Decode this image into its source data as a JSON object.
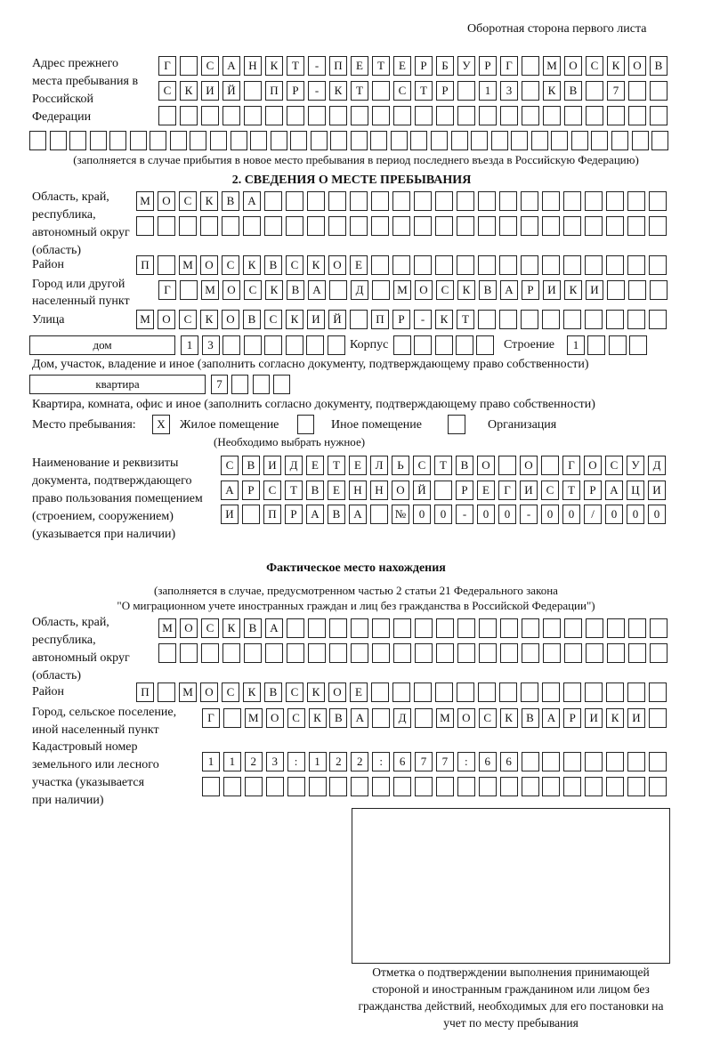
{
  "header": {
    "page_side": "Оборотная сторона первого листа"
  },
  "previous_address": {
    "label": "Адрес прежнего места пребывания в Российской Федерации",
    "rows": [
      [
        "Г",
        "",
        "С",
        "А",
        "Н",
        "К",
        "Т",
        "-",
        "П",
        "Е",
        "Т",
        "Е",
        "Р",
        "Б",
        "У",
        "Р",
        "Г",
        "",
        "М",
        "О",
        "С",
        "К",
        "О",
        "В"
      ],
      [
        "С",
        "К",
        "И",
        "Й",
        "",
        "П",
        "Р",
        "-",
        "К",
        "Т",
        "",
        "С",
        "Т",
        "Р",
        "",
        "1",
        "3",
        "",
        "К",
        "В",
        "",
        "7",
        "",
        ""
      ],
      [
        "",
        "",
        "",
        "",
        "",
        "",
        "",
        "",
        "",
        "",
        "",
        "",
        "",
        "",
        "",
        "",
        "",
        "",
        "",
        "",
        "",
        "",
        "",
        ""
      ],
      [
        "",
        "",
        "",
        "",
        "",
        "",
        "",
        "",
        "",
        "",
        "",
        "",
        "",
        "",
        "",
        "",
        "",
        "",
        "",
        "",
        "",
        "",
        "",
        "",
        "",
        "",
        "",
        "",
        "",
        "",
        "",
        ""
      ]
    ],
    "note": "(заполняется в случае прибытия в новое место пребывания в период последнего въезда в Российскую Федерацию)"
  },
  "section2": {
    "title": "2. СВЕДЕНИЯ О МЕСТЕ ПРЕБЫВАНИЯ",
    "region_label": "Область, край, республика, автономный округ (область)",
    "region_rows": [
      [
        "М",
        "О",
        "С",
        "К",
        "В",
        "А",
        "",
        "",
        "",
        "",
        "",
        "",
        "",
        "",
        "",
        "",
        "",
        "",
        "",
        "",
        "",
        "",
        "",
        "",
        ""
      ],
      [
        "",
        "",
        "",
        "",
        "",
        "",
        "",
        "",
        "",
        "",
        "",
        "",
        "",
        "",
        "",
        "",
        "",
        "",
        "",
        "",
        "",
        "",
        "",
        "",
        ""
      ]
    ],
    "district_label": "Район",
    "district_row": [
      "П",
      "",
      "М",
      "О",
      "С",
      "К",
      "В",
      "С",
      "К",
      "О",
      "Е",
      "",
      "",
      "",
      "",
      "",
      "",
      "",
      "",
      "",
      "",
      "",
      "",
      "",
      ""
    ],
    "city_label": "Город или другой населенный пункт",
    "city_row": [
      "Г",
      "",
      "М",
      "О",
      "С",
      "К",
      "В",
      "А",
      "",
      "Д",
      "",
      "М",
      "О",
      "С",
      "К",
      "В",
      "А",
      "Р",
      "И",
      "К",
      "И",
      "",
      "",
      ""
    ],
    "street_label": "Улица",
    "street_row": [
      "М",
      "О",
      "С",
      "К",
      "О",
      "В",
      "С",
      "К",
      "И",
      "Й",
      "",
      "П",
      "Р",
      "-",
      "К",
      "Т",
      "",
      "",
      "",
      "",
      "",
      "",
      "",
      "",
      ""
    ],
    "house_type": "дом",
    "house_cells": [
      "1",
      "3",
      "",
      "",
      "",
      "",
      "",
      ""
    ],
    "korpus_label": "Корпус",
    "korpus_cells": [
      "",
      "",
      "",
      "",
      ""
    ],
    "stroenie_label": "Строение",
    "stroenie_cells": [
      "1",
      "",
      "",
      ""
    ],
    "house_note": "Дом, участок, владение и иное (заполнить согласно документу, подтверждающему право собственности)",
    "apt_type": "квартира",
    "apt_cells": [
      "7",
      "",
      "",
      ""
    ],
    "apt_note": "Квартира, комната, офис и иное (заполнить согласно документу, подтверждающему право собственности)",
    "place_label": "Место пребывания:",
    "place_options": [
      {
        "label": "Жилое помещение",
        "mark": "X"
      },
      {
        "label": "Иное помещение",
        "mark": ""
      },
      {
        "label": "Организация",
        "mark": ""
      }
    ],
    "place_note": "(Необходимо выбрать нужное)",
    "doc_label": "Наименование и реквизиты документа, подтверждающего право пользования помещением (строением, сооружением) (указывается при наличии)",
    "doc_rows": [
      [
        "С",
        "В",
        "И",
        "Д",
        "Е",
        "Т",
        "Е",
        "Л",
        "Ь",
        "С",
        "Т",
        "В",
        "О",
        "",
        "О",
        "",
        "Г",
        "О",
        "С",
        "У",
        "Д"
      ],
      [
        "А",
        "Р",
        "С",
        "Т",
        "В",
        "Е",
        "Н",
        "Н",
        "О",
        "Й",
        "",
        "Р",
        "Е",
        "Г",
        "И",
        "С",
        "Т",
        "Р",
        "А",
        "Ц",
        "И"
      ],
      [
        "И",
        "",
        "П",
        "Р",
        "А",
        "В",
        "А",
        "",
        "№",
        "0",
        "0",
        "-",
        "0",
        "0",
        "-",
        "0",
        "0",
        "/",
        "0",
        "0",
        "0"
      ]
    ]
  },
  "actual": {
    "title": "Фактическое место нахождения",
    "note1": "(заполняется в случае, предусмотренном частью 2 статьи 21 Федерального закона",
    "note2": "\"О миграционном учете иностранных граждан и лиц без гражданства в Российской Федерации\")",
    "region_label": "Область, край, республика, автономный округ (область)",
    "region_rows": [
      [
        "М",
        "О",
        "С",
        "К",
        "В",
        "А",
        "",
        "",
        "",
        "",
        "",
        "",
        "",
        "",
        "",
        "",
        "",
        "",
        "",
        "",
        "",
        "",
        "",
        ""
      ],
      [
        "",
        "",
        "",
        "",
        "",
        "",
        "",
        "",
        "",
        "",
        "",
        "",
        "",
        "",
        "",
        "",
        "",
        "",
        "",
        "",
        "",
        "",
        "",
        ""
      ]
    ],
    "district_label": "Район",
    "district_row": [
      "П",
      "",
      "М",
      "О",
      "С",
      "К",
      "В",
      "С",
      "К",
      "О",
      "Е",
      "",
      "",
      "",
      "",
      "",
      "",
      "",
      "",
      "",
      "",
      "",
      "",
      "",
      ""
    ],
    "city_label": "Город, сельское поселение, иной населенный пункт",
    "city_row": [
      "Г",
      "",
      "М",
      "О",
      "С",
      "К",
      "В",
      "А",
      "",
      "Д",
      "",
      "М",
      "О",
      "С",
      "К",
      "В",
      "А",
      "Р",
      "И",
      "К",
      "И",
      ""
    ],
    "cadastral_label": "Кадастровый номер земельного или лесного участка (указывается при наличии)",
    "cadastral_rows": [
      [
        "1",
        "1",
        "2",
        "3",
        ":",
        "1",
        "2",
        "2",
        ":",
        "6",
        "7",
        "7",
        ":",
        "6",
        "6",
        "",
        "",
        "",
        "",
        "",
        "",
        ""
      ],
      [
        "",
        "",
        "",
        "",
        "",
        "",
        "",
        "",
        "",
        "",
        "",
        "",
        "",
        "",
        "",
        "",
        "",
        "",
        "",
        "",
        "",
        ""
      ]
    ],
    "stamp_caption": "Отметка о подтверждении выполнения принимающей стороной и иностранным гражданином или лицом без гражданства действий, необходимых для его постановки на учет по месту пребывания"
  }
}
